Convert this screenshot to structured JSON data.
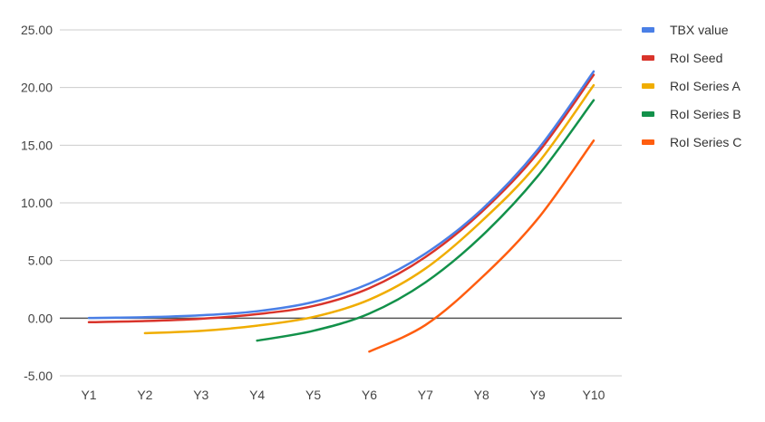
{
  "chart_data": {
    "type": "line",
    "title": "",
    "xlabel": "",
    "ylabel": "",
    "categories": [
      "Y1",
      "Y2",
      "Y3",
      "Y4",
      "Y5",
      "Y6",
      "Y7",
      "Y8",
      "Y9",
      "Y10"
    ],
    "y_ticks": [
      "-5.00",
      "0.00",
      "5.00",
      "10.00",
      "15.00",
      "20.00",
      "25.00"
    ],
    "ylim": [
      -5,
      25
    ],
    "grid": true,
    "legend_position": "right",
    "series": [
      {
        "name": "TBX value",
        "color": "#4a7fe6",
        "x": [
          1,
          2,
          3,
          4,
          5,
          6,
          7,
          8,
          9,
          10
        ],
        "values": [
          0.02,
          0.08,
          0.25,
          0.6,
          1.4,
          3.0,
          5.6,
          9.4,
          14.6,
          21.4
        ]
      },
      {
        "name": "RoI Seed",
        "color": "#d9342b",
        "x": [
          1,
          2,
          3,
          4,
          5,
          6,
          7,
          8,
          9,
          10
        ],
        "values": [
          -0.35,
          -0.25,
          -0.05,
          0.35,
          1.05,
          2.6,
          5.3,
          9.2,
          14.3,
          21.1
        ]
      },
      {
        "name": "RoI Series A",
        "color": "#f0ad00",
        "x": [
          2,
          3,
          4,
          5,
          6,
          7,
          8,
          9,
          10
        ],
        "values": [
          -1.3,
          -1.1,
          -0.65,
          0.1,
          1.6,
          4.3,
          8.4,
          13.4,
          20.2
        ]
      },
      {
        "name": "RoI Series B",
        "color": "#12914a",
        "x": [
          4,
          5,
          6,
          7,
          8,
          9,
          10
        ],
        "values": [
          -1.95,
          -1.1,
          0.4,
          3.1,
          7.1,
          12.3,
          18.9
        ]
      },
      {
        "name": "RoI Series C",
        "color": "#ff5d0f",
        "x": [
          6,
          7,
          8,
          9,
          10
        ],
        "values": [
          -2.9,
          -0.6,
          3.5,
          8.6,
          15.4
        ]
      }
    ]
  }
}
